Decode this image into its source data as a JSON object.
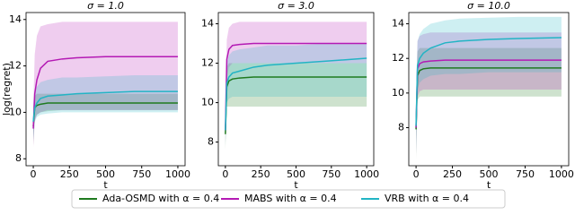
{
  "chart_data": [
    {
      "type": "line",
      "title": "σ = 1.0",
      "y_label": "log(regret)",
      "x_label": "t",
      "x": [
        0,
        10,
        25,
        50,
        100,
        200,
        300,
        500,
        700,
        1000
      ],
      "xlim": [
        -50,
        1050
      ],
      "xticks": [
        0,
        250,
        500,
        750,
        1000
      ],
      "ylim": [
        7.7,
        14.3
      ],
      "yticks": [
        8,
        10,
        12,
        14
      ],
      "series": [
        {
          "name": "Ada-OSMD with α = 0.4",
          "color": "#1f7a1f",
          "values": [
            9.4,
            10.2,
            10.3,
            10.35,
            10.4,
            10.4,
            10.4,
            10.4,
            10.4,
            10.4
          ],
          "lower": [
            8.6,
            9.7,
            9.9,
            10.0,
            10.05,
            10.1,
            10.1,
            10.1,
            10.1,
            10.1
          ],
          "upper": [
            10.2,
            10.7,
            10.8,
            10.8,
            10.8,
            10.8,
            10.8,
            10.8,
            10.8,
            10.8
          ]
        },
        {
          "name": "MABS with α = 0.4",
          "color": "#b41ab4",
          "values": [
            9.3,
            10.8,
            11.4,
            11.9,
            12.2,
            12.3,
            12.35,
            12.4,
            12.4,
            12.4
          ],
          "lower": [
            8.5,
            9.6,
            9.9,
            10.0,
            10.1,
            10.1,
            10.1,
            10.1,
            10.1,
            10.1
          ],
          "upper": [
            10.2,
            12.5,
            13.3,
            13.7,
            13.8,
            13.9,
            13.9,
            13.9,
            13.9,
            13.9
          ]
        },
        {
          "name": "VRB with α = 0.4",
          "color": "#22b4c4",
          "values": [
            9.6,
            10.2,
            10.4,
            10.6,
            10.7,
            10.75,
            10.8,
            10.85,
            10.9,
            10.9
          ],
          "lower": [
            8.8,
            9.6,
            9.8,
            9.9,
            9.95,
            10.0,
            10.0,
            10.0,
            10.0,
            10.0
          ],
          "upper": [
            10.4,
            10.9,
            11.1,
            11.3,
            11.4,
            11.5,
            11.5,
            11.55,
            11.6,
            11.6
          ]
        }
      ]
    },
    {
      "type": "line",
      "title": "σ = 3.0",
      "x_label": "t",
      "x": [
        0,
        10,
        25,
        50,
        100,
        200,
        300,
        500,
        700,
        1000
      ],
      "xlim": [
        -50,
        1050
      ],
      "xticks": [
        0,
        250,
        500,
        750,
        1000
      ],
      "ylim": [
        6.8,
        14.57
      ],
      "yticks": [
        8,
        10,
        12,
        14
      ],
      "series": [
        {
          "color": "#1f7a1f",
          "values": [
            8.4,
            10.8,
            11.1,
            11.2,
            11.25,
            11.3,
            11.3,
            11.3,
            11.3,
            11.3
          ],
          "lower": [
            7.6,
            9.8,
            9.8,
            9.8,
            9.8,
            9.8,
            9.8,
            9.8,
            9.8,
            9.8
          ],
          "upper": [
            9.2,
            11.8,
            12.0,
            12.0,
            12.0,
            12.0,
            12.0,
            12.0,
            12.0,
            12.0
          ]
        },
        {
          "color": "#b41ab4",
          "values": [
            8.6,
            12.2,
            12.7,
            12.9,
            12.95,
            13.0,
            13.0,
            13.0,
            13.0,
            13.0
          ],
          "lower": [
            7.8,
            11.2,
            11.8,
            12.0,
            12.0,
            12.0,
            12.0,
            12.0,
            12.0,
            12.0
          ],
          "upper": [
            9.4,
            13.2,
            13.8,
            14.0,
            14.1,
            14.1,
            14.1,
            14.1,
            14.1,
            14.1
          ]
        },
        {
          "color": "#22b4c4",
          "values": [
            8.6,
            11.0,
            11.3,
            11.5,
            11.6,
            11.8,
            11.9,
            12.0,
            12.1,
            12.25
          ],
          "lower": [
            7.8,
            10.0,
            10.2,
            10.3,
            10.3,
            10.3,
            10.3,
            10.3,
            10.3,
            10.3
          ],
          "upper": [
            9.4,
            12.0,
            12.4,
            12.6,
            12.7,
            12.8,
            12.9,
            12.9,
            13.0,
            13.0
          ]
        }
      ]
    },
    {
      "type": "line",
      "title": "σ = 10.0",
      "x_label": "t",
      "x": [
        0,
        10,
        25,
        50,
        100,
        200,
        300,
        500,
        700,
        1000
      ],
      "xlim": [
        -50,
        1050
      ],
      "xticks": [
        0,
        250,
        500,
        750,
        1000
      ],
      "ylim": [
        5.8,
        14.65
      ],
      "yticks": [
        8,
        10,
        12,
        14
      ],
      "series": [
        {
          "color": "#1f7a1f",
          "values": [
            7.9,
            11.0,
            11.3,
            11.4,
            11.45,
            11.45,
            11.45,
            11.45,
            11.45,
            11.45
          ],
          "lower": [
            6.2,
            9.6,
            9.8,
            9.8,
            9.8,
            9.8,
            9.8,
            9.8,
            9.8,
            9.8
          ],
          "upper": [
            9.5,
            12.4,
            12.6,
            12.6,
            12.6,
            12.6,
            12.6,
            12.6,
            12.6,
            12.6
          ]
        },
        {
          "color": "#b41ab4",
          "values": [
            8.0,
            11.4,
            11.7,
            11.8,
            11.85,
            11.9,
            11.9,
            11.9,
            11.9,
            11.9
          ],
          "lower": [
            6.4,
            9.8,
            10.1,
            10.2,
            10.2,
            10.2,
            10.2,
            10.2,
            10.2,
            10.2
          ],
          "upper": [
            9.6,
            13.0,
            13.3,
            13.4,
            13.5,
            13.5,
            13.5,
            13.5,
            13.5,
            13.5
          ]
        },
        {
          "color": "#22b4c4",
          "values": [
            8.1,
            11.6,
            12.0,
            12.3,
            12.6,
            12.9,
            13.0,
            13.1,
            13.15,
            13.2
          ],
          "lower": [
            6.5,
            10.2,
            10.6,
            10.8,
            11.0,
            11.1,
            11.1,
            11.2,
            11.2,
            11.2
          ],
          "upper": [
            9.7,
            13.0,
            13.4,
            13.7,
            14.0,
            14.2,
            14.3,
            14.35,
            14.4,
            14.4
          ]
        }
      ]
    }
  ]
}
